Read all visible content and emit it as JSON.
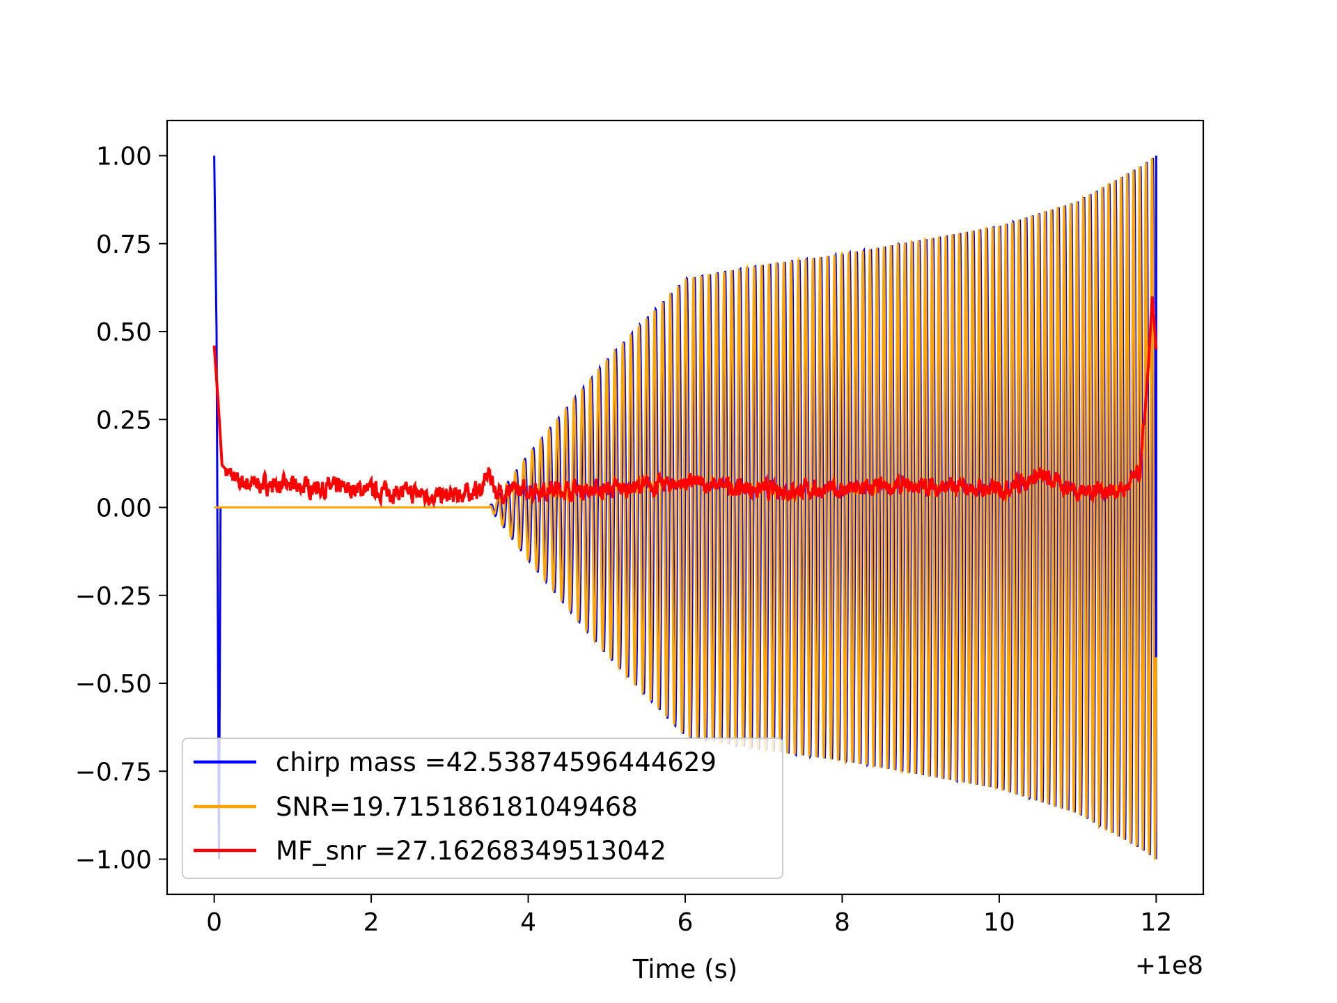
{
  "chart_data": {
    "type": "line",
    "title": "",
    "xlabel": "Time (s)",
    "ylabel": "",
    "x_offset_label": "+1e8",
    "xlim": [
      -0.6,
      12.6
    ],
    "ylim": [
      -1.1,
      1.1
    ],
    "x_ticks": [
      0,
      2,
      4,
      6,
      8,
      10,
      12
    ],
    "x_tick_labels": [
      "0",
      "2",
      "4",
      "6",
      "8",
      "10",
      "12"
    ],
    "y_ticks": [
      1.0,
      0.75,
      0.5,
      0.25,
      0.0,
      -0.25,
      -0.5,
      -0.75,
      -1.0
    ],
    "y_tick_labels": [
      "1.00",
      "0.75",
      "0.50",
      "0.25",
      "0.00",
      "−0.25",
      "−0.50",
      "−0.75",
      "−1.00"
    ],
    "grid": false,
    "legend_position": "lower-left",
    "series": [
      {
        "name": "chirp mass =42.53874596444629",
        "color": "#0000ff",
        "description_points": {
          "x": [
            0.0,
            0.03,
            0.06,
            0.08,
            3.5,
            4.0,
            5.0,
            6.0,
            7.0,
            8.0,
            9.0,
            10.0,
            11.0,
            11.8,
            12.0
          ],
          "y_envelope": [
            1.0,
            0.5,
            -1.0,
            0.0,
            0.0,
            0.15,
            0.42,
            0.65,
            0.69,
            0.72,
            0.76,
            0.8,
            0.87,
            0.97,
            1.0
          ]
        }
      },
      {
        "name": "SNR=19.715186181049468",
        "color": "#ffa500",
        "description_points": {
          "x": [
            0.0,
            3.5,
            4.0,
            5.0,
            6.0,
            7.0,
            8.0,
            9.0,
            10.0,
            11.0,
            11.8,
            12.0
          ],
          "y_envelope": [
            0.0,
            0.0,
            0.15,
            0.42,
            0.65,
            0.69,
            0.72,
            0.76,
            0.8,
            0.87,
            0.97,
            1.0
          ]
        }
      },
      {
        "name": "MF_snr =27.16268349513042",
        "color": "#ff0000",
        "x": [
          0.0,
          0.05,
          0.1,
          0.3,
          1.0,
          2.0,
          3.0,
          3.4,
          3.5,
          3.6,
          4.0,
          5.0,
          6.0,
          7.0,
          8.0,
          9.0,
          10.0,
          10.5,
          11.0,
          11.6,
          11.8,
          11.9,
          11.95,
          12.0
        ],
        "y": [
          0.46,
          0.3,
          0.12,
          0.07,
          0.06,
          0.05,
          0.03,
          0.05,
          0.1,
          0.04,
          0.05,
          0.05,
          0.07,
          0.05,
          0.05,
          0.06,
          0.05,
          0.09,
          0.05,
          0.05,
          0.1,
          0.4,
          0.6,
          0.45
        ]
      }
    ]
  }
}
